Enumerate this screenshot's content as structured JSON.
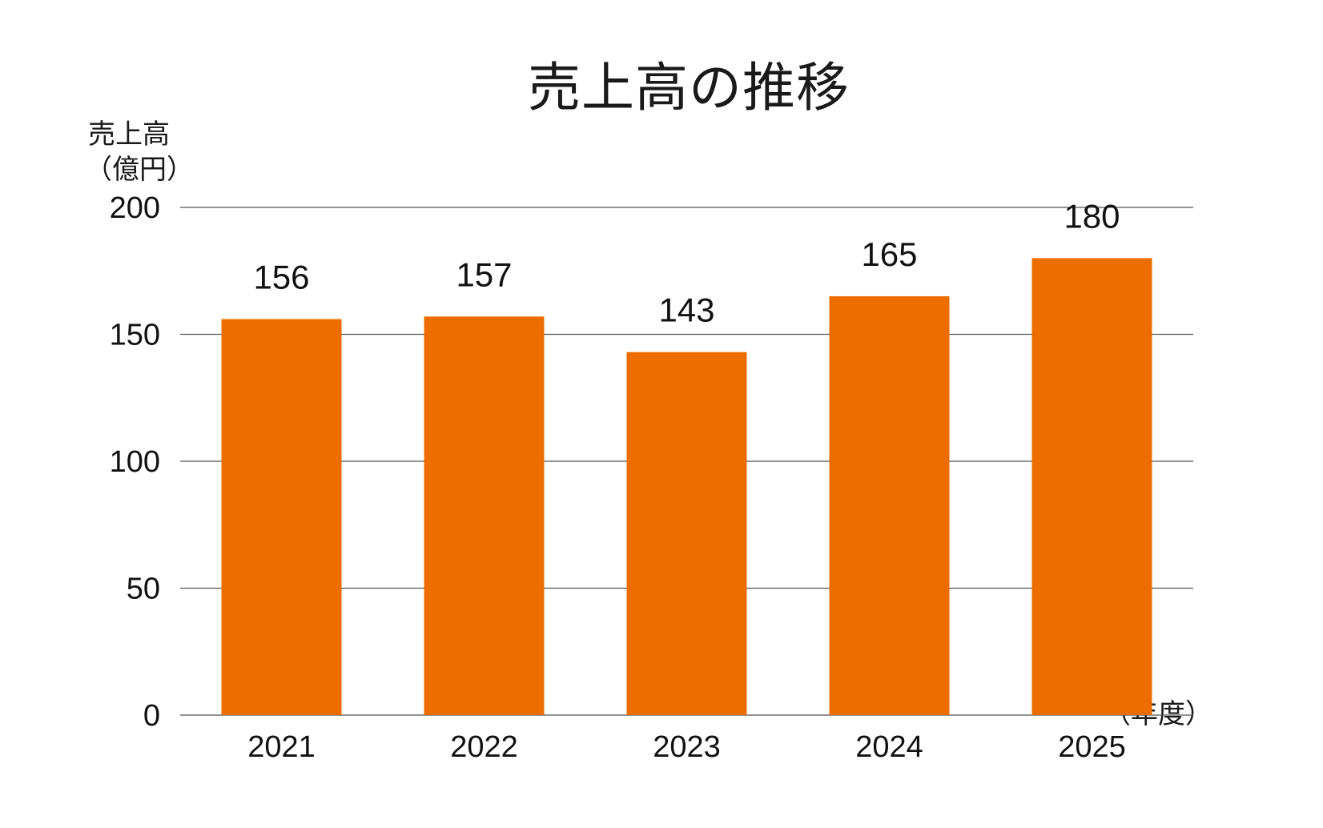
{
  "chart_data": {
    "type": "bar",
    "title": "売上高の推移",
    "ylabel_lines": [
      "売上高",
      "（億円）"
    ],
    "xlabel": "（年度）",
    "categories": [
      "2021",
      "2022",
      "2023",
      "2024",
      "2025"
    ],
    "values": [
      156,
      157,
      143,
      165,
      180
    ],
    "data_labels": [
      "156",
      "157",
      "143",
      "165",
      "180"
    ],
    "ylim": [
      0,
      200
    ],
    "yticks": [
      0,
      50,
      100,
      150,
      200
    ],
    "ytick_labels": [
      "0",
      "50",
      "100",
      "150",
      "200"
    ],
    "grid": "horizontal",
    "legend": "none",
    "bar_color": "#ED6D00",
    "grid_color": "#555555"
  }
}
